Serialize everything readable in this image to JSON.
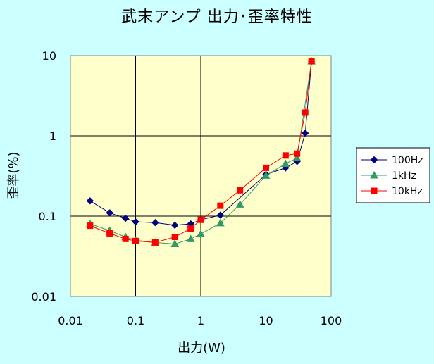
{
  "chart_data": {
    "type": "line",
    "title": "武末アンプ 出力･歪率特性",
    "xlabel": "出力(W)",
    "ylabel": "歪率(%)",
    "x_scale": "log",
    "y_scale": "log",
    "xlim": [
      0.01,
      100
    ],
    "ylim": [
      0.01,
      10
    ],
    "x_ticks": [
      "0.01",
      "0.1",
      "1",
      "10",
      "100"
    ],
    "y_ticks": [
      "0.01",
      "0.1",
      "1",
      "10"
    ],
    "grid": "major, log decades",
    "legend": "right",
    "plot_background": "#ffffcc",
    "page_background": "#ccffff",
    "series": [
      {
        "name": "100Hz",
        "color": "#000080",
        "marker": "diamond",
        "points": [
          [
            0.02,
            0.155
          ],
          [
            0.04,
            0.11
          ],
          [
            0.07,
            0.094
          ],
          [
            0.1,
            0.085
          ],
          [
            0.2,
            0.083
          ],
          [
            0.4,
            0.077
          ],
          [
            0.7,
            0.08
          ],
          [
            1.0,
            0.09
          ],
          [
            2.0,
            0.103
          ],
          [
            10.0,
            0.33
          ],
          [
            20.0,
            0.4
          ],
          [
            30.0,
            0.48
          ],
          [
            40.0,
            1.08
          ],
          [
            50.0,
            8.5
          ]
        ]
      },
      {
        "name": "1kHz",
        "color": "#339966",
        "marker": "triangle",
        "points": [
          [
            0.02,
            0.08
          ],
          [
            0.04,
            0.066
          ],
          [
            0.07,
            0.055
          ],
          [
            0.1,
            0.05
          ],
          [
            0.2,
            0.047
          ],
          [
            0.4,
            0.045
          ],
          [
            0.7,
            0.052
          ],
          [
            1.0,
            0.06
          ],
          [
            2.0,
            0.082
          ],
          [
            4.0,
            0.14
          ],
          [
            10.0,
            0.32
          ],
          [
            20.0,
            0.45
          ],
          [
            30.0,
            0.53
          ],
          [
            50.0,
            8.5
          ]
        ]
      },
      {
        "name": "10kHz",
        "color": "#ff0000",
        "marker": "square",
        "points": [
          [
            0.02,
            0.076
          ],
          [
            0.04,
            0.061
          ],
          [
            0.07,
            0.052
          ],
          [
            0.1,
            0.049
          ],
          [
            0.2,
            0.047
          ],
          [
            0.4,
            0.055
          ],
          [
            0.7,
            0.07
          ],
          [
            1.0,
            0.09
          ],
          [
            2.0,
            0.135
          ],
          [
            4.0,
            0.21
          ],
          [
            10.0,
            0.4
          ],
          [
            20.0,
            0.57
          ],
          [
            30.0,
            0.6
          ],
          [
            40.0,
            1.95
          ],
          [
            50.0,
            8.5
          ]
        ]
      }
    ]
  }
}
